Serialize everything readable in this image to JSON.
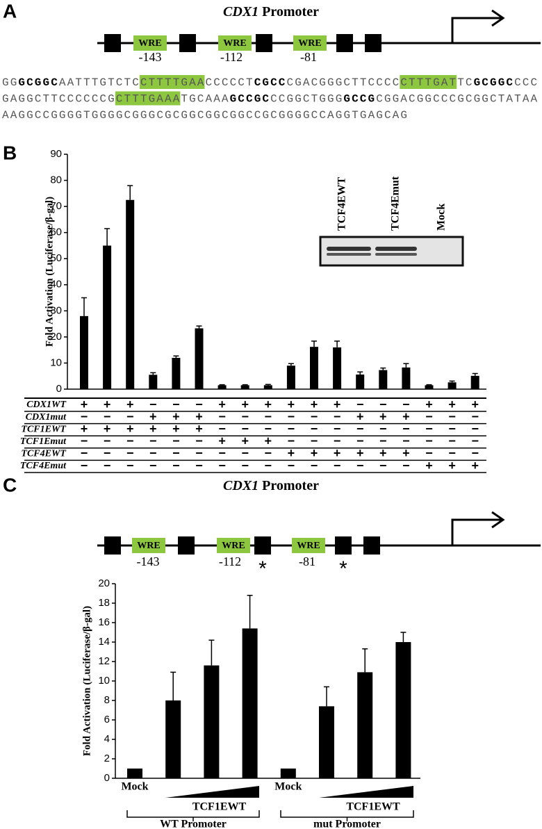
{
  "panel_labels": [
    "A",
    "B",
    "C"
  ],
  "promoter_a": {
    "title_gene": "CDX1",
    "title_rest": "Promoter",
    "wre_label": "WRE",
    "sites": [
      "-143",
      "-112",
      "-81"
    ]
  },
  "sequence": [
    [
      {
        "text": "GG",
        "style": "plain"
      },
      {
        "text": "GCGGC",
        "style": "bold"
      },
      {
        "text": "AATTTGTCTC",
        "style": "plain"
      },
      {
        "text": "CTTTTGAA",
        "style": "highlight"
      },
      {
        "text": "CCCCCT",
        "style": "plain"
      },
      {
        "text": "CGCC",
        "style": "bold"
      },
      {
        "text": "CGACGGGCTTCCCC",
        "style": "plain"
      },
      {
        "text": "CTTTGAT",
        "style": "highlight"
      },
      {
        "text": "TC",
        "style": "plain"
      },
      {
        "text": "GCGGC",
        "style": "bold"
      },
      {
        "text": "CCC",
        "style": "plain"
      }
    ],
    [
      {
        "text": "GAGGCTTCCCCCCG",
        "style": "plain"
      },
      {
        "text": "CTTTGAAA",
        "style": "highlight"
      },
      {
        "text": "TGCAAA",
        "style": "plain"
      },
      {
        "text": "GCCGC",
        "style": "bold"
      },
      {
        "text": "CCGGCTGGG",
        "style": "plain"
      },
      {
        "text": "GCCG",
        "style": "bold"
      },
      {
        "text": "CGGACGGCCCGCGGCTATAA",
        "style": "plain"
      }
    ],
    [
      {
        "text": "AAGGCCGGGGTGGGGCGGGCGCGGCGGCGGCCGCGGGGCCAGGTGAGCAG",
        "style": "plain"
      }
    ]
  ],
  "promoter_c": {
    "title_gene": "CDX1",
    "title_rest": "Promoter",
    "wre_label": "WRE",
    "sites": [
      "-143",
      "-112",
      "-81"
    ],
    "mutation_mark": "*"
  },
  "chart_data": [
    {
      "type": "bar",
      "y_label": "Fold Activation (Luciferase/β-gal)",
      "color": "#000000",
      "ylim": [
        0,
        90
      ],
      "yticks": [
        0,
        10,
        20,
        30,
        40,
        50,
        60,
        70,
        80,
        90
      ],
      "values": [
        28,
        55,
        72.5,
        5.5,
        12,
        23.3,
        1.5,
        1.5,
        1.5,
        9,
        16.2,
        16,
        5.6,
        7.3,
        8.3,
        1.5,
        2.6,
        5.1
      ],
      "errors": [
        7,
        6.5,
        5.5,
        0.8,
        0.7,
        0.9,
        0.2,
        0.2,
        0.3,
        0.8,
        2.2,
        2.4,
        1,
        0.8,
        1.5,
        0.2,
        0.5,
        0.9
      ],
      "conditions": [
        {
          "label": "CDX1WT",
          "signs": [
            "+",
            "+",
            "+",
            "−",
            "−",
            "−",
            "+",
            "+",
            "+",
            "+",
            "+",
            "+",
            "−",
            "−",
            "−",
            "+",
            "+",
            "+"
          ]
        },
        {
          "label": "CDX1mut",
          "signs": [
            "−",
            "−",
            "−",
            "+",
            "+",
            "+",
            "−",
            "−",
            "−",
            "−",
            "−",
            "−",
            "+",
            "+",
            "+",
            "−",
            "−",
            "−"
          ]
        },
        {
          "label": "TCF1EWT",
          "signs": [
            "+",
            "+",
            "+",
            "+",
            "+",
            "+",
            "−",
            "−",
            "−",
            "−",
            "−",
            "−",
            "−",
            "−",
            "−",
            "−",
            "−",
            "−"
          ]
        },
        {
          "label": "TCF1Emut",
          "signs": [
            "−",
            "−",
            "−",
            "−",
            "−",
            "−",
            "+",
            "+",
            "+",
            "−",
            "−",
            "−",
            "−",
            "−",
            "−",
            "−",
            "−",
            "−"
          ]
        },
        {
          "label": "TCF4EWT",
          "signs": [
            "−",
            "−",
            "−",
            "−",
            "−",
            "−",
            "−",
            "−",
            "−",
            "+",
            "+",
            "+",
            "+",
            "+",
            "+",
            "−",
            "−",
            "−"
          ]
        },
        {
          "label": "TCF4Emut",
          "signs": [
            "−",
            "−",
            "−",
            "−",
            "−",
            "−",
            "−",
            "−",
            "−",
            "−",
            "−",
            "−",
            "−",
            "−",
            "−",
            "+",
            "+",
            "+"
          ]
        }
      ],
      "inset_lanes": [
        "TCF4EWT",
        "TCF4Emut",
        "Mock"
      ]
    },
    {
      "type": "bar",
      "y_label": "Fold Activation (Luciferase/β-gal)",
      "color": "#000000",
      "ylim": [
        0,
        20
      ],
      "yticks": [
        0,
        2,
        4,
        6,
        8,
        10,
        12,
        14,
        16,
        18,
        20
      ],
      "categories": [
        "Mock",
        null,
        null,
        null,
        "Mock",
        null,
        null,
        null
      ],
      "values": [
        1,
        8,
        11.6,
        15.4,
        1,
        7.4,
        10.9,
        14
      ],
      "errors": [
        null,
        2.9,
        2.6,
        3.4,
        null,
        2,
        2.4,
        1
      ],
      "groups": [
        {
          "label": "WT Promoter",
          "ramp_label": "TCF1EWT"
        },
        {
          "label": "mut Promoter",
          "ramp_label": "TCF1EWT"
        }
      ]
    }
  ]
}
